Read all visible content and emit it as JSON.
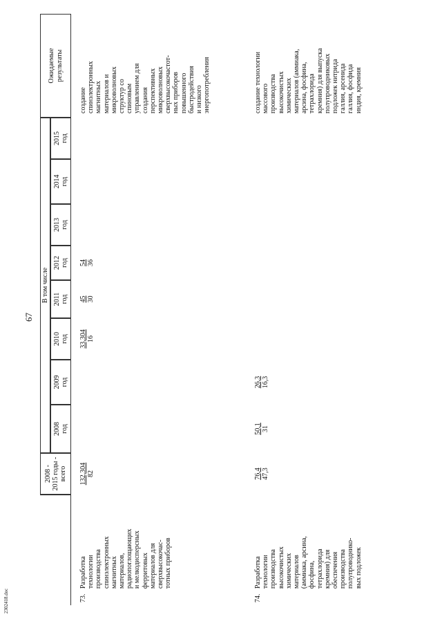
{
  "page_number": "67",
  "header": {
    "total": [
      "2008 -",
      "2015 годы -",
      "всего"
    ],
    "including": "В том числе",
    "years": [
      {
        "year": "2008",
        "unit": "год"
      },
      {
        "year": "2009",
        "unit": "год"
      },
      {
        "year": "2010",
        "unit": "год"
      },
      {
        "year": "2011",
        "unit": "год"
      },
      {
        "year": "2012",
        "unit": "год"
      },
      {
        "year": "2013",
        "unit": "год"
      },
      {
        "year": "2014",
        "unit": "год"
      },
      {
        "year": "2015",
        "unit": "год"
      }
    ],
    "results": [
      "Ожидаемые",
      "результаты"
    ]
  },
  "rows": [
    {
      "number": "73.",
      "name": [
        "Разработка",
        "технологии",
        "производства",
        "спинэлектронных",
        "магнитных",
        "материалов,",
        "радиопоглощающих",
        "и мелкодисперсных",
        "ферритовых",
        "материалов для",
        "сверхвысокочас-",
        "тотных приборов"
      ],
      "total": [
        "132,304",
        "82"
      ],
      "years": [
        [],
        [],
        [
          "33,304",
          "16"
        ],
        [
          "45",
          "30"
        ],
        [
          "54",
          "36"
        ],
        [],
        [],
        []
      ],
      "results": [
        "создание",
        "спинэлектронных",
        "магнитных",
        "материалов и",
        "микроволновых",
        "структур со",
        "спиновым",
        "управлением для",
        "создания",
        "перспективных",
        "микроволновых",
        "сверхвысокочастот-",
        "ных приборов",
        "повышенного",
        "быстродействия",
        "и низкого",
        "энергопотребления"
      ]
    },
    {
      "number": "74.",
      "name": [
        "Разработка",
        "технологии",
        "производства",
        "высокочистых",
        "химических",
        "материалов",
        "(аммиака, арсина,",
        "фосфина,",
        "тетрахлорида",
        "кремния) для",
        "обеспечения",
        "производства",
        "полупроводнико-",
        "вых подложек"
      ],
      "total": [
        "76,4",
        "47,3"
      ],
      "years": [
        [
          "50,1",
          "31"
        ],
        [
          "26,3",
          "16,3"
        ],
        [],
        [],
        [],
        [],
        [],
        []
      ],
      "results": [
        "создание технологии",
        "массового",
        "производства",
        "высокочистых",
        "химических",
        "материалов (аммиака,",
        "арсина, фосфина,",
        "тетрахлорида",
        "кремния) для выпуска",
        "полупроводниковых",
        "подложек нитрида",
        "галлия, арсенида",
        "галлия, фосфида",
        "индия, кремния"
      ]
    }
  ],
  "footer": "2302418.doc"
}
